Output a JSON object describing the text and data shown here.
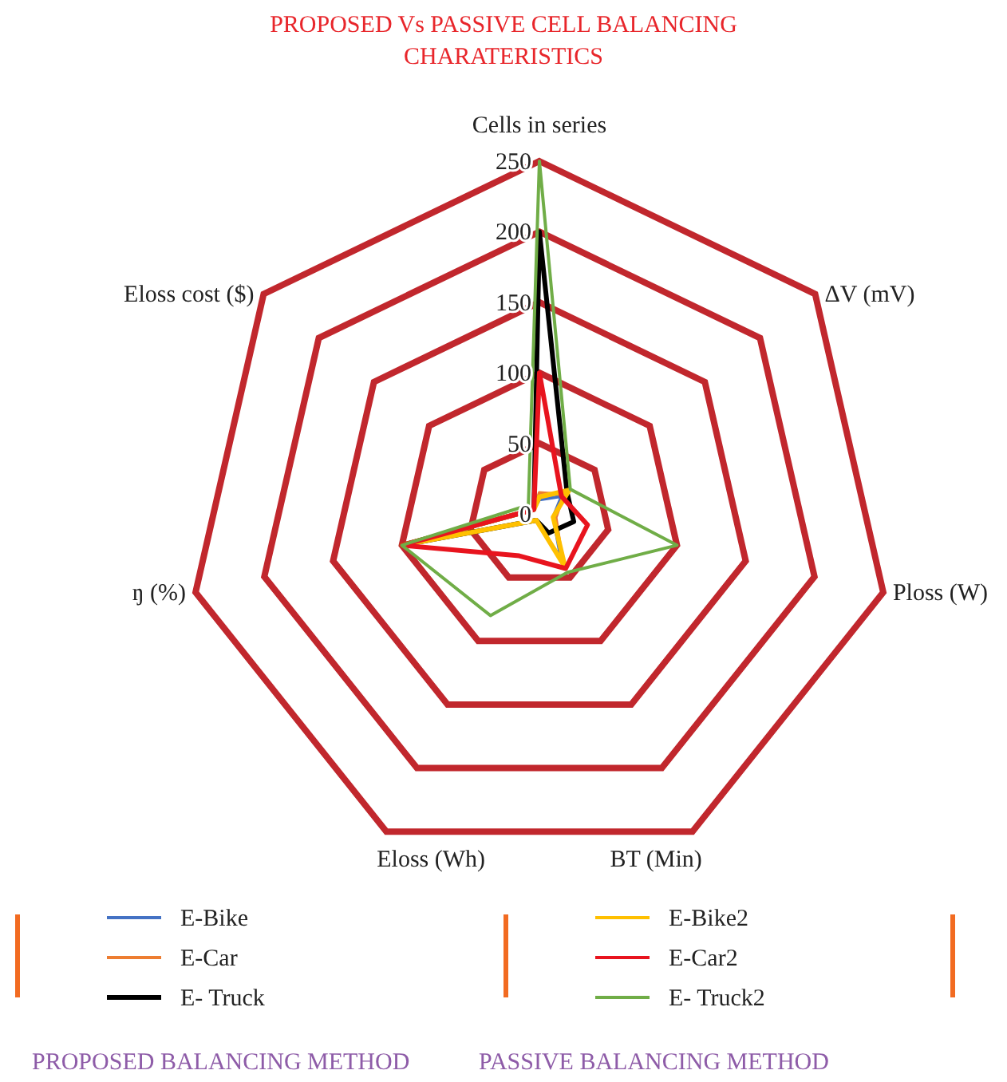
{
  "chart_data": {
    "type": "radar",
    "title": "PROPOSED Vs PASSIVE CELL BALANCING CHARATERISTICS",
    "categories": [
      "Cells in series",
      "ΔV (mV)",
      "Ploss (W)",
      "BT (Min)",
      "Eloss (Wh)",
      "ŋ (%)",
      "Eloss cost ($)"
    ],
    "ylim": [
      0,
      250
    ],
    "yticks": [
      0,
      50,
      100,
      150,
      200,
      250
    ],
    "grid": true,
    "legend": "bottom",
    "marker": "none",
    "line_style": "solid",
    "series": [
      {
        "name": "E-Bike",
        "color": "#4472c4",
        "values": [
          10,
          20,
          10,
          35,
          5,
          100,
          5
        ]
      },
      {
        "name": "E-Car",
        "color": "#ed7d31",
        "values": [
          15,
          22,
          12,
          38,
          5,
          100,
          5
        ]
      },
      {
        "name": "E- Truck",
        "color": "#000000",
        "values": [
          200,
          25,
          25,
          15,
          5,
          100,
          5
        ]
      },
      {
        "name": "E-Bike2",
        "color": "#ffc000",
        "values": [
          12,
          27,
          10,
          42,
          5,
          100,
          5
        ]
      },
      {
        "name": "E-Car2",
        "color": "#e8141e",
        "values": [
          100,
          20,
          35,
          43,
          33,
          100,
          5
        ]
      },
      {
        "name": "E- Truck2",
        "color": "#70ad47",
        "values": [
          250,
          28,
          100,
          46,
          80,
          100,
          10
        ]
      }
    ],
    "annotations": [
      "PROPOSED BALANCING METHOD",
      "PASSIVE BALANCING METHOD"
    ]
  }
}
